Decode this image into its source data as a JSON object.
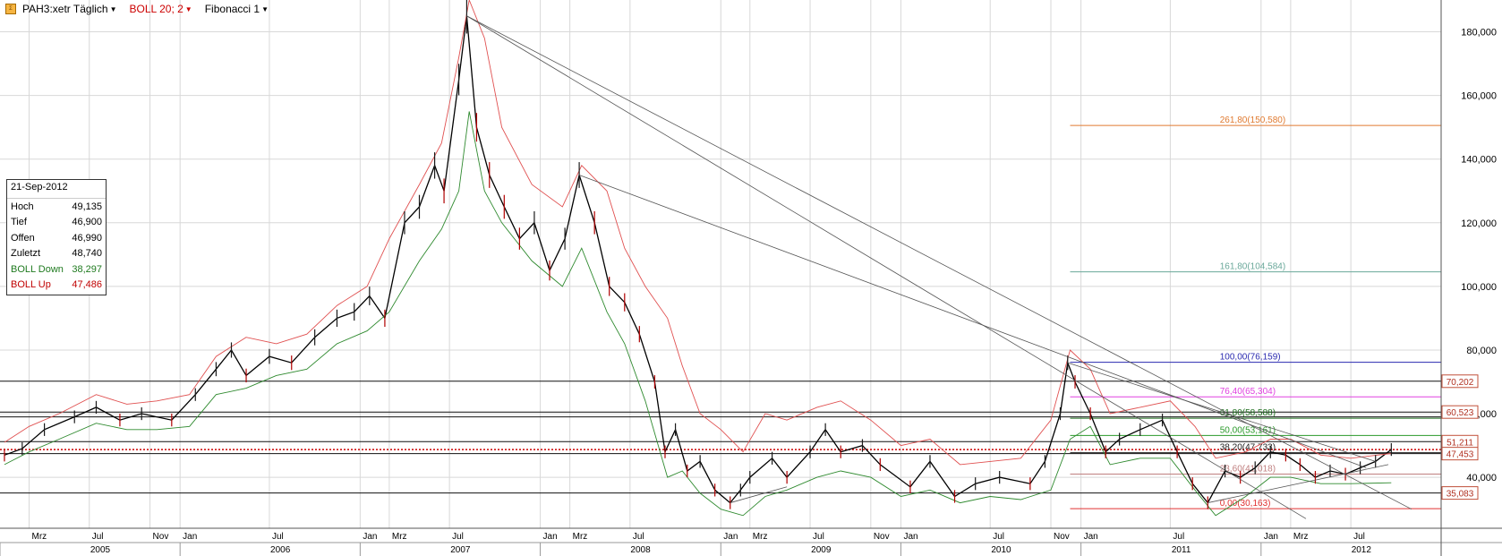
{
  "toolbar": {
    "symbol": "PAH3:xetr Täglich",
    "boll": "BOLL 20; 2",
    "fib": "Fibonacci 1",
    "icon": "chart-icon",
    "colors": {
      "symbol": "#000000",
      "boll": "#cc0000",
      "fib": "#000000"
    }
  },
  "info_box": {
    "date": "21-Sep-2012",
    "rows": [
      {
        "label": "Hoch",
        "value": "49,135"
      },
      {
        "label": "Tief",
        "value": "46,900"
      },
      {
        "label": "Offen",
        "value": "46,990"
      },
      {
        "label": "Zuletzt",
        "value": "48,740"
      },
      {
        "label": "BOLL Down",
        "value": "38,297"
      },
      {
        "label": "BOLL Up",
        "value": "47,486"
      }
    ]
  },
  "chart_data": {
    "type": "line",
    "title": "",
    "y_axis": {
      "range": [
        24,
        190
      ],
      "ticks": [
        40,
        60,
        80,
        100,
        120,
        140,
        160,
        180
      ],
      "tick_labels": [
        "40,000",
        "60,000",
        "80,000",
        "100,000",
        "120,000",
        "140,000",
        "160,000",
        "180,000"
      ]
    },
    "x_axis": {
      "range": [
        "2005-01-01",
        "2012-12-31"
      ],
      "month_ticks": [
        {
          "date": "2005-03-01",
          "label": "Mrz"
        },
        {
          "date": "2005-07-01",
          "label": "Jul"
        },
        {
          "date": "2005-11-01",
          "label": "Nov"
        },
        {
          "date": "2006-01-01",
          "label": "Jan"
        },
        {
          "date": "2006-07-01",
          "label": "Jul"
        },
        {
          "date": "2007-01-01",
          "label": "Jan"
        },
        {
          "date": "2007-03-01",
          "label": "Mrz"
        },
        {
          "date": "2007-07-01",
          "label": "Jul"
        },
        {
          "date": "2008-01-01",
          "label": "Jan"
        },
        {
          "date": "2008-03-01",
          "label": "Mrz"
        },
        {
          "date": "2008-07-01",
          "label": "Jul"
        },
        {
          "date": "2009-01-01",
          "label": "Jan"
        },
        {
          "date": "2009-03-01",
          "label": "Mrz"
        },
        {
          "date": "2009-07-01",
          "label": "Jul"
        },
        {
          "date": "2009-11-01",
          "label": "Nov"
        },
        {
          "date": "2010-01-01",
          "label": "Jan"
        },
        {
          "date": "2010-07-01",
          "label": "Jul"
        },
        {
          "date": "2010-11-01",
          "label": "Nov"
        },
        {
          "date": "2011-01-01",
          "label": "Jan"
        },
        {
          "date": "2011-07-01",
          "label": "Jul"
        },
        {
          "date": "2012-01-01",
          "label": "Jan"
        },
        {
          "date": "2012-03-01",
          "label": "Mrz"
        },
        {
          "date": "2012-07-01",
          "label": "Jul"
        }
      ],
      "year_ticks": [
        {
          "date": "2005-01-01",
          "label": "2005"
        },
        {
          "date": "2006-01-01",
          "label": "2006"
        },
        {
          "date": "2007-01-01",
          "label": "2007"
        },
        {
          "date": "2008-01-01",
          "label": "2008"
        },
        {
          "date": "2009-01-01",
          "label": "2009"
        },
        {
          "date": "2010-01-01",
          "label": "2010"
        },
        {
          "date": "2011-01-01",
          "label": "2011"
        },
        {
          "date": "2012-01-01",
          "label": "2012"
        }
      ]
    },
    "series": [
      {
        "name": "PAH3:xetr",
        "color": "#000000",
        "points": [
          [
            "2005-01-10",
            47
          ],
          [
            "2005-02-15",
            49
          ],
          [
            "2005-04-01",
            55
          ],
          [
            "2005-06-01",
            59
          ],
          [
            "2005-07-15",
            62
          ],
          [
            "2005-09-01",
            58
          ],
          [
            "2005-10-15",
            60
          ],
          [
            "2005-12-15",
            58
          ],
          [
            "2006-02-01",
            66
          ],
          [
            "2006-03-15",
            74
          ],
          [
            "2006-04-15",
            80
          ],
          [
            "2006-05-15",
            72
          ],
          [
            "2006-07-01",
            78
          ],
          [
            "2006-08-15",
            76
          ],
          [
            "2006-10-01",
            84
          ],
          [
            "2006-11-15",
            90
          ],
          [
            "2006-12-20",
            92
          ],
          [
            "2007-01-20",
            97
          ],
          [
            "2007-02-20",
            90
          ],
          [
            "2007-04-01",
            120
          ],
          [
            "2007-05-01",
            125
          ],
          [
            "2007-06-01",
            138
          ],
          [
            "2007-06-20",
            130
          ],
          [
            "2007-07-20",
            165
          ],
          [
            "2007-08-05",
            185
          ],
          [
            "2007-08-25",
            150
          ],
          [
            "2007-09-20",
            135
          ],
          [
            "2007-10-20",
            125
          ],
          [
            "2007-11-20",
            115
          ],
          [
            "2007-12-20",
            120
          ],
          [
            "2008-01-20",
            105
          ],
          [
            "2008-02-20",
            115
          ],
          [
            "2008-03-20",
            135
          ],
          [
            "2008-04-20",
            120
          ],
          [
            "2008-05-20",
            100
          ],
          [
            "2008-06-20",
            95
          ],
          [
            "2008-07-20",
            85
          ],
          [
            "2008-08-20",
            70
          ],
          [
            "2008-09-10",
            48
          ],
          [
            "2008-10-01",
            55
          ],
          [
            "2008-10-25",
            42
          ],
          [
            "2008-11-20",
            45
          ],
          [
            "2008-12-20",
            36
          ],
          [
            "2009-01-20",
            32
          ],
          [
            "2009-02-10",
            36
          ],
          [
            "2009-03-01",
            40
          ],
          [
            "2009-04-15",
            46
          ],
          [
            "2009-05-15",
            40
          ],
          [
            "2009-07-01",
            48
          ],
          [
            "2009-08-01",
            55
          ],
          [
            "2009-09-01",
            48
          ],
          [
            "2009-10-15",
            50
          ],
          [
            "2009-11-20",
            44
          ],
          [
            "2010-01-20",
            37
          ],
          [
            "2010-03-01",
            45
          ],
          [
            "2010-04-20",
            34
          ],
          [
            "2010-06-01",
            38
          ],
          [
            "2010-07-20",
            40
          ],
          [
            "2010-09-20",
            38
          ],
          [
            "2010-10-20",
            45
          ],
          [
            "2010-11-20",
            60
          ],
          [
            "2010-12-05",
            76
          ],
          [
            "2010-12-20",
            70
          ],
          [
            "2011-01-20",
            60
          ],
          [
            "2011-02-20",
            48
          ],
          [
            "2011-03-20",
            52
          ],
          [
            "2011-05-01",
            55
          ],
          [
            "2011-06-15",
            58
          ],
          [
            "2011-07-15",
            48
          ],
          [
            "2011-08-15",
            38
          ],
          [
            "2011-09-15",
            32
          ],
          [
            "2011-10-20",
            42
          ],
          [
            "2011-11-20",
            40
          ],
          [
            "2011-12-20",
            43
          ],
          [
            "2012-01-20",
            48
          ],
          [
            "2012-02-20",
            47
          ],
          [
            "2012-03-20",
            44
          ],
          [
            "2012-04-20",
            40
          ],
          [
            "2012-05-20",
            42
          ],
          [
            "2012-06-20",
            41
          ],
          [
            "2012-07-20",
            43
          ],
          [
            "2012-08-20",
            45
          ],
          [
            "2012-09-21",
            48.74
          ]
        ]
      },
      {
        "name": "BOLL Up",
        "color": "#e05050",
        "points": [
          [
            "2005-01-10",
            51
          ],
          [
            "2005-03-01",
            56
          ],
          [
            "2005-05-01",
            60
          ],
          [
            "2005-07-15",
            66
          ],
          [
            "2005-09-15",
            63
          ],
          [
            "2005-11-15",
            64
          ],
          [
            "2006-01-20",
            66
          ],
          [
            "2006-03-15",
            78
          ],
          [
            "2006-05-15",
            84
          ],
          [
            "2006-07-15",
            82
          ],
          [
            "2006-09-15",
            85
          ],
          [
            "2006-11-15",
            94
          ],
          [
            "2007-01-15",
            100
          ],
          [
            "2007-03-01",
            115
          ],
          [
            "2007-05-01",
            132
          ],
          [
            "2007-06-15",
            145
          ],
          [
            "2007-07-20",
            172
          ],
          [
            "2007-08-10",
            190
          ],
          [
            "2007-09-10",
            178
          ],
          [
            "2007-10-15",
            150
          ],
          [
            "2007-12-15",
            132
          ],
          [
            "2008-02-15",
            125
          ],
          [
            "2008-03-25",
            138
          ],
          [
            "2008-05-15",
            130
          ],
          [
            "2008-06-20",
            112
          ],
          [
            "2008-08-01",
            100
          ],
          [
            "2008-09-15",
            90
          ],
          [
            "2008-10-15",
            75
          ],
          [
            "2008-11-20",
            60
          ],
          [
            "2009-01-01",
            55
          ],
          [
            "2009-02-15",
            48
          ],
          [
            "2009-04-01",
            60
          ],
          [
            "2009-05-15",
            58
          ],
          [
            "2009-07-15",
            62
          ],
          [
            "2009-09-01",
            64
          ],
          [
            "2009-11-01",
            58
          ],
          [
            "2010-01-01",
            50
          ],
          [
            "2010-03-01",
            52
          ],
          [
            "2010-05-01",
            44
          ],
          [
            "2010-07-01",
            45
          ],
          [
            "2010-09-01",
            46
          ],
          [
            "2010-11-01",
            58
          ],
          [
            "2010-12-10",
            80
          ],
          [
            "2011-01-20",
            74
          ],
          [
            "2011-03-01",
            60
          ],
          [
            "2011-05-01",
            62
          ],
          [
            "2011-07-01",
            64
          ],
          [
            "2011-08-20",
            56
          ],
          [
            "2011-10-01",
            46
          ],
          [
            "2011-12-01",
            48
          ],
          [
            "2012-01-20",
            52
          ],
          [
            "2012-03-01",
            52
          ],
          [
            "2012-05-01",
            47
          ],
          [
            "2012-07-01",
            46
          ],
          [
            "2012-09-21",
            47.486
          ]
        ]
      },
      {
        "name": "BOLL Down",
        "color": "#2f8a2f",
        "points": [
          [
            "2005-01-10",
            44
          ],
          [
            "2005-03-01",
            48
          ],
          [
            "2005-05-01",
            52
          ],
          [
            "2005-07-15",
            57
          ],
          [
            "2005-09-15",
            55
          ],
          [
            "2005-11-15",
            55
          ],
          [
            "2006-01-20",
            56
          ],
          [
            "2006-03-15",
            66
          ],
          [
            "2006-05-15",
            68
          ],
          [
            "2006-07-15",
            72
          ],
          [
            "2006-09-15",
            74
          ],
          [
            "2006-11-15",
            82
          ],
          [
            "2007-01-15",
            86
          ],
          [
            "2007-03-01",
            92
          ],
          [
            "2007-05-01",
            108
          ],
          [
            "2007-06-15",
            118
          ],
          [
            "2007-07-20",
            130
          ],
          [
            "2007-08-10",
            155
          ],
          [
            "2007-09-10",
            130
          ],
          [
            "2007-10-15",
            120
          ],
          [
            "2007-12-15",
            108
          ],
          [
            "2008-02-15",
            100
          ],
          [
            "2008-03-25",
            112
          ],
          [
            "2008-05-15",
            92
          ],
          [
            "2008-06-20",
            82
          ],
          [
            "2008-08-01",
            64
          ],
          [
            "2008-09-15",
            40
          ],
          [
            "2008-10-15",
            42
          ],
          [
            "2008-11-20",
            35
          ],
          [
            "2009-01-01",
            30
          ],
          [
            "2009-02-15",
            28
          ],
          [
            "2009-04-01",
            34
          ],
          [
            "2009-05-15",
            36
          ],
          [
            "2009-07-15",
            40
          ],
          [
            "2009-09-01",
            42
          ],
          [
            "2009-11-01",
            40
          ],
          [
            "2010-01-01",
            34
          ],
          [
            "2010-03-01",
            36
          ],
          [
            "2010-05-01",
            32
          ],
          [
            "2010-07-01",
            34
          ],
          [
            "2010-09-01",
            33
          ],
          [
            "2010-11-01",
            36
          ],
          [
            "2010-12-10",
            52
          ],
          [
            "2011-01-20",
            56
          ],
          [
            "2011-03-01",
            44
          ],
          [
            "2011-05-01",
            46
          ],
          [
            "2011-07-01",
            46
          ],
          [
            "2011-08-20",
            36
          ],
          [
            "2011-10-01",
            28
          ],
          [
            "2011-12-01",
            34
          ],
          [
            "2012-01-20",
            40
          ],
          [
            "2012-03-01",
            40
          ],
          [
            "2012-05-01",
            38
          ],
          [
            "2012-07-01",
            38
          ],
          [
            "2012-09-21",
            38.297
          ]
        ]
      }
    ],
    "fibonacci": [
      {
        "label": "261,80(150,580)",
        "value": 150.58,
        "color": "#e07a30",
        "from": "2010-12-10"
      },
      {
        "label": "161,80(104,584)",
        "value": 104.584,
        "color": "#6aa89a",
        "from": "2010-12-10"
      },
      {
        "label": "100,00(76,159)",
        "value": 76.159,
        "color": "#2a2ab0",
        "from": "2010-12-10"
      },
      {
        "label": "76,40(65,304)",
        "value": 65.304,
        "color": "#e040e0",
        "from": "2010-12-10"
      },
      {
        "label": "61,80(58,588)",
        "value": 58.588,
        "color": "#1f6f1f",
        "from": "2010-12-10"
      },
      {
        "label": "50,00(53,161)",
        "value": 53.161,
        "color": "#2a9a2a",
        "from": "2010-12-10"
      },
      {
        "label": "38,20(47,733)",
        "value": 47.733,
        "color": "#222222",
        "from": "2010-12-10"
      },
      {
        "label": "23,60(41,018)",
        "value": 41.018,
        "color": "#c08080",
        "from": "2010-12-10"
      },
      {
        "label": "0,00(30,163)",
        "value": 30.163,
        "color": "#e03030",
        "from": "2010-12-10"
      }
    ],
    "horizontal_levels": [
      {
        "value": 70.202,
        "label": "70,202"
      },
      {
        "value": 60.523,
        "label": "60,523"
      },
      {
        "value": 51.211,
        "label": "51,211"
      },
      {
        "value": 47.453,
        "label": "47,453"
      },
      {
        "value": 35.083,
        "label": "35,083"
      }
    ],
    "support_level_line": {
      "value": 59.0
    },
    "last_price_line": {
      "value": 48.74,
      "color": "#cc0000"
    },
    "trendlines": [
      {
        "from": [
          "2007-08-05",
          185
        ],
        "to": [
          "2012-04-01",
          27
        ]
      },
      {
        "from": [
          "2007-08-05",
          185
        ],
        "to": [
          "2012-11-01",
          30
        ]
      },
      {
        "from": [
          "2008-03-20",
          135
        ],
        "to": [
          "2012-08-01",
          43
        ]
      },
      {
        "from": [
          "2010-12-05",
          76
        ],
        "to": [
          "2012-08-20",
          45
        ]
      },
      {
        "from": [
          "2011-09-15",
          32
        ],
        "to": [
          "2012-09-15",
          44
        ]
      },
      {
        "from": [
          "2009-01-20",
          32
        ],
        "to": [
          "2009-05-15",
          37
        ]
      }
    ],
    "grid": true,
    "legend": "top-left"
  }
}
